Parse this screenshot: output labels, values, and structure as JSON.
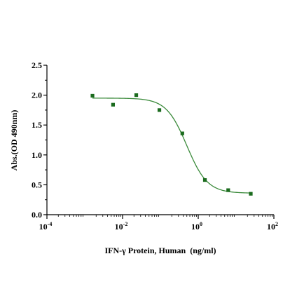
{
  "chart_data": {
    "type": "scatter",
    "xscale": "log",
    "xlim": [
      0.0001,
      100
    ],
    "ylim": [
      0.0,
      2.5
    ],
    "xlabel": "IFN-γ Protein, Human  (ng/ml)",
    "ylabel": "Abs.(OD 490nm)",
    "title": "",
    "grid": false,
    "y_ticks": [
      "0.0",
      "0.5",
      "1.0",
      "1.5",
      "2.0",
      "2.5"
    ],
    "x_ticks": [
      {
        "base": "10",
        "exp": "-4",
        "value": 0.0001
      },
      {
        "base": "10",
        "exp": "-2",
        "value": 0.01
      },
      {
        "base": "10",
        "exp": "0",
        "value": 1
      },
      {
        "base": "10",
        "exp": "2",
        "value": 100
      }
    ],
    "series": [
      {
        "points": [
          {
            "x": 0.0016,
            "y": 1.99
          },
          {
            "x": 0.0056,
            "y": 1.84
          },
          {
            "x": 0.023,
            "y": 2.0
          },
          {
            "x": 0.094,
            "y": 1.75
          },
          {
            "x": 0.38,
            "y": 1.36
          },
          {
            "x": 1.5,
            "y": 0.58
          },
          {
            "x": 6.2,
            "y": 0.41
          },
          {
            "x": 24.5,
            "y": 0.35
          }
        ],
        "color": "#1b6b1e",
        "marker": "square"
      }
    ],
    "fit_curve": {
      "model": "4PL",
      "top": 1.95,
      "bottom": 0.36,
      "ic50": 0.5,
      "hill": 1.6,
      "color": "#3a8a3a"
    }
  }
}
